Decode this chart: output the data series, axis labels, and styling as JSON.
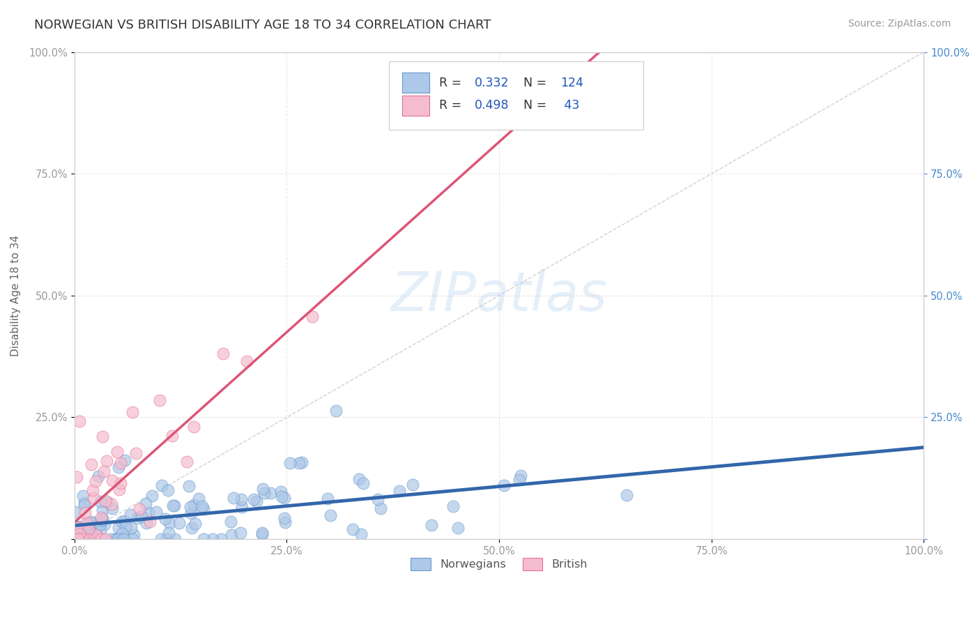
{
  "title": "NORWEGIAN VS BRITISH DISABILITY AGE 18 TO 34 CORRELATION CHART",
  "source_text": "Source: ZipAtlas.com",
  "ylabel": "Disability Age 18 to 34",
  "watermark": "ZIPatlas",
  "xlim": [
    0,
    100
  ],
  "ylim": [
    0,
    100
  ],
  "xtick_labels": [
    "0.0%",
    "25.0%",
    "50.0%",
    "75.0%",
    "100.0%"
  ],
  "xtick_vals": [
    0,
    25,
    50,
    75,
    100
  ],
  "ytick_labels": [
    "",
    "25.0%",
    "50.0%",
    "75.0%",
    "100.0%"
  ],
  "ytick_vals": [
    0,
    25,
    50,
    75,
    100
  ],
  "right_ytick_labels": [
    "100.0%",
    "75.0%",
    "50.0%",
    "25.0%",
    ""
  ],
  "norwegian_R": 0.332,
  "norwegian_N": 124,
  "british_R": 0.498,
  "british_N": 43,
  "norwegian_color": "#adc8e8",
  "british_color": "#f5bcd0",
  "norwegian_edge_color": "#6699cc",
  "british_edge_color": "#e87090",
  "norwegian_line_color": "#3366aa",
  "british_line_color": "#dd5577",
  "reference_line_color": "#cccccc",
  "legend_R_color": "#2255bb",
  "background_color": "#ffffff",
  "grid_color": "#dddddd",
  "title_color": "#333333",
  "title_fontsize": 13,
  "axis_label_color": "#666666",
  "tick_label_color": "#999999",
  "right_tick_color": "#4488cc",
  "source_color": "#999999"
}
